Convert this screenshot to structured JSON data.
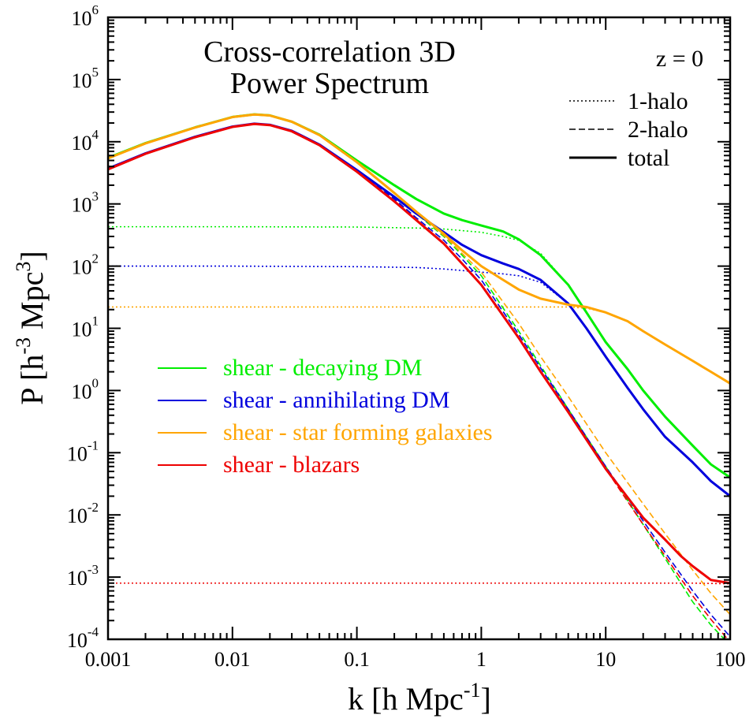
{
  "chart_data": {
    "type": "line",
    "title_lines": [
      "Cross-correlation 3D",
      "Power Spectrum"
    ],
    "redshift_label": "z = 0",
    "xlabel": {
      "base": "k [h Mpc",
      "sup": "-1",
      "tail": "]"
    },
    "ylabel": {
      "p1": "P [h",
      "sup1": "-3",
      "p2": " Mpc",
      "sup2": "3",
      "p3": "]"
    },
    "xscale": "log",
    "yscale": "log",
    "xlim": [
      0.001,
      100
    ],
    "ylim": [
      0.0001,
      1000000
    ],
    "x_ticks": [
      {
        "value": 0.001,
        "label": "0.001"
      },
      {
        "value": 0.01,
        "label": "0.01"
      },
      {
        "value": 0.1,
        "label": "0.1"
      },
      {
        "value": 1,
        "label": "1"
      },
      {
        "value": 10,
        "label": "10"
      },
      {
        "value": 100,
        "label": "100"
      }
    ],
    "y_ticks": [
      {
        "value": 0.0001,
        "base": "10",
        "exp": "-4"
      },
      {
        "value": 0.001,
        "base": "10",
        "exp": "-3"
      },
      {
        "value": 0.01,
        "base": "10",
        "exp": "-2"
      },
      {
        "value": 0.1,
        "base": "10",
        "exp": "-1"
      },
      {
        "value": 1,
        "base": "10",
        "exp": "0"
      },
      {
        "value": 10,
        "base": "10",
        "exp": "1"
      },
      {
        "value": 100,
        "base": "10",
        "exp": "2"
      },
      {
        "value": 1000,
        "base": "10",
        "exp": "3"
      },
      {
        "value": 10000,
        "base": "10",
        "exp": "4"
      },
      {
        "value": 100000,
        "base": "10",
        "exp": "5"
      },
      {
        "value": 1000000,
        "base": "10",
        "exp": "6"
      }
    ],
    "line_style_legend": [
      {
        "style": "dotted",
        "label": "1-halo"
      },
      {
        "style": "dashed",
        "label": "2-halo"
      },
      {
        "style": "solid",
        "label": "total"
      }
    ],
    "series": [
      {
        "name": "shear - decaying DM",
        "color": "#00ee00",
        "total": [
          [
            0.001,
            5500
          ],
          [
            0.002,
            9500
          ],
          [
            0.005,
            17000
          ],
          [
            0.01,
            25000
          ],
          [
            0.015,
            27500
          ],
          [
            0.02,
            26500
          ],
          [
            0.03,
            21000
          ],
          [
            0.05,
            13000
          ],
          [
            0.1,
            5000
          ],
          [
            0.2,
            2000
          ],
          [
            0.3,
            1200
          ],
          [
            0.5,
            700
          ],
          [
            0.7,
            550
          ],
          [
            1,
            450
          ],
          [
            1.5,
            360
          ],
          [
            2,
            270
          ],
          [
            3,
            150
          ],
          [
            5,
            50
          ],
          [
            7,
            18
          ],
          [
            10,
            6
          ],
          [
            15,
            2.2
          ],
          [
            20,
            1
          ],
          [
            30,
            0.38
          ],
          [
            50,
            0.13
          ],
          [
            70,
            0.065
          ],
          [
            100,
            0.04
          ]
        ],
        "one_halo": [
          [
            0.001,
            430
          ],
          [
            0.01,
            430
          ],
          [
            0.1,
            425
          ],
          [
            0.3,
            410
          ],
          [
            0.5,
            395
          ],
          [
            1,
            350
          ],
          [
            1.5,
            300
          ],
          [
            2,
            260
          ],
          [
            3,
            160
          ],
          [
            5,
            50
          ],
          [
            7,
            18
          ],
          [
            10,
            6
          ],
          [
            15,
            2.2
          ],
          [
            20,
            1
          ],
          [
            30,
            0.38
          ],
          [
            50,
            0.13
          ],
          [
            70,
            0.065
          ],
          [
            100,
            0.04
          ]
        ],
        "two_halo": [
          [
            0.001,
            5300
          ],
          [
            0.002,
            9300
          ],
          [
            0.005,
            16800
          ],
          [
            0.01,
            24800
          ],
          [
            0.015,
            27300
          ],
          [
            0.02,
            26300
          ],
          [
            0.03,
            20800
          ],
          [
            0.05,
            12600
          ],
          [
            0.1,
            4600
          ],
          [
            0.2,
            1500
          ],
          [
            0.3,
            700
          ],
          [
            0.5,
            300
          ],
          [
            0.7,
            150
          ],
          [
            1,
            70
          ],
          [
            2,
            9
          ],
          [
            3,
            2.5
          ],
          [
            5,
            0.5
          ],
          [
            10,
            0.06
          ],
          [
            20,
            0.007
          ],
          [
            30,
            0.002
          ],
          [
            50,
            0.0004
          ],
          [
            70,
            0.00017
          ],
          [
            100,
            8e-05
          ]
        ]
      },
      {
        "name": "shear - annihilating DM",
        "color": "#0000dd",
        "total": [
          [
            0.001,
            3700
          ],
          [
            0.002,
            6500
          ],
          [
            0.005,
            12000
          ],
          [
            0.01,
            17500
          ],
          [
            0.015,
            19500
          ],
          [
            0.02,
            18700
          ],
          [
            0.03,
            15000
          ],
          [
            0.05,
            9000
          ],
          [
            0.1,
            3500
          ],
          [
            0.2,
            1300
          ],
          [
            0.3,
            700
          ],
          [
            0.5,
            350
          ],
          [
            0.7,
            220
          ],
          [
            1,
            150
          ],
          [
            1.5,
            110
          ],
          [
            2,
            90
          ],
          [
            3,
            60
          ],
          [
            5,
            25
          ],
          [
            7,
            10
          ],
          [
            10,
            3.5
          ],
          [
            15,
            1.1
          ],
          [
            20,
            0.5
          ],
          [
            30,
            0.18
          ],
          [
            50,
            0.07
          ],
          [
            70,
            0.035
          ],
          [
            100,
            0.02
          ]
        ],
        "one_halo": [
          [
            0.001,
            100
          ],
          [
            0.01,
            100
          ],
          [
            0.1,
            98
          ],
          [
            0.3,
            95
          ],
          [
            0.5,
            90
          ],
          [
            1,
            80
          ],
          [
            1.5,
            75
          ],
          [
            2,
            70
          ],
          [
            3,
            55
          ],
          [
            5,
            25
          ],
          [
            7,
            10
          ],
          [
            10,
            3.5
          ],
          [
            15,
            1.1
          ],
          [
            20,
            0.5
          ],
          [
            30,
            0.18
          ],
          [
            50,
            0.07
          ],
          [
            70,
            0.035
          ],
          [
            100,
            0.02
          ]
        ],
        "two_halo": [
          [
            0.001,
            3600
          ],
          [
            0.002,
            6400
          ],
          [
            0.005,
            11900
          ],
          [
            0.01,
            17400
          ],
          [
            0.015,
            19400
          ],
          [
            0.02,
            18600
          ],
          [
            0.03,
            14900
          ],
          [
            0.05,
            8900
          ],
          [
            0.1,
            3400
          ],
          [
            0.2,
            1200
          ],
          [
            0.3,
            600
          ],
          [
            0.5,
            260
          ],
          [
            0.7,
            130
          ],
          [
            1,
            60
          ],
          [
            2,
            8
          ],
          [
            3,
            2.3
          ],
          [
            5,
            0.5
          ],
          [
            10,
            0.06
          ],
          [
            20,
            0.008
          ],
          [
            30,
            0.0025
          ],
          [
            50,
            0.0006
          ],
          [
            70,
            0.00025
          ],
          [
            100,
            0.00011
          ]
        ]
      },
      {
        "name": "shear - star forming galaxies",
        "color": "#ffa500",
        "total": [
          [
            0.001,
            5400
          ],
          [
            0.002,
            9400
          ],
          [
            0.005,
            16900
          ],
          [
            0.01,
            24900
          ],
          [
            0.015,
            27400
          ],
          [
            0.02,
            26400
          ],
          [
            0.03,
            21000
          ],
          [
            0.05,
            12800
          ],
          [
            0.1,
            4700
          ],
          [
            0.2,
            1500
          ],
          [
            0.3,
            750
          ],
          [
            0.5,
            330
          ],
          [
            0.7,
            180
          ],
          [
            1,
            100
          ],
          [
            1.5,
            60
          ],
          [
            2,
            42
          ],
          [
            3,
            30
          ],
          [
            5,
            24
          ],
          [
            7,
            22
          ],
          [
            10,
            18
          ],
          [
            15,
            13
          ],
          [
            20,
            9
          ],
          [
            30,
            5.5
          ],
          [
            50,
            3
          ],
          [
            70,
            2
          ],
          [
            100,
            1.3
          ]
        ],
        "one_halo": [
          [
            0.001,
            22
          ],
          [
            0.01,
            22
          ],
          [
            0.1,
            22
          ],
          [
            0.5,
            22
          ],
          [
            1,
            22
          ],
          [
            2,
            22
          ],
          [
            3,
            22
          ],
          [
            5,
            22
          ],
          [
            7,
            21
          ],
          [
            10,
            18
          ],
          [
            15,
            13
          ],
          [
            20,
            9
          ],
          [
            30,
            5.5
          ],
          [
            50,
            3
          ],
          [
            70,
            2
          ],
          [
            100,
            1.3
          ]
        ],
        "two_halo": [
          [
            0.001,
            5380
          ],
          [
            0.002,
            9380
          ],
          [
            0.005,
            16880
          ],
          [
            0.01,
            24880
          ],
          [
            0.015,
            27380
          ],
          [
            0.02,
            26380
          ],
          [
            0.03,
            20980
          ],
          [
            0.05,
            12780
          ],
          [
            0.1,
            4680
          ],
          [
            0.2,
            1480
          ],
          [
            0.3,
            730
          ],
          [
            0.5,
            310
          ],
          [
            0.7,
            160
          ],
          [
            1,
            80
          ],
          [
            2,
            12
          ],
          [
            3,
            3.5
          ],
          [
            5,
            0.8
          ],
          [
            10,
            0.1
          ],
          [
            20,
            0.015
          ],
          [
            30,
            0.005
          ],
          [
            50,
            0.0013
          ],
          [
            70,
            0.00055
          ],
          [
            100,
            0.00025
          ]
        ]
      },
      {
        "name": "shear - blazars",
        "color": "#ee0000",
        "total": [
          [
            0.001,
            3600
          ],
          [
            0.002,
            6400
          ],
          [
            0.005,
            11800
          ],
          [
            0.01,
            17300
          ],
          [
            0.015,
            19300
          ],
          [
            0.02,
            18500
          ],
          [
            0.03,
            14700
          ],
          [
            0.05,
            8800
          ],
          [
            0.1,
            3300
          ],
          [
            0.2,
            1100
          ],
          [
            0.3,
            550
          ],
          [
            0.5,
            230
          ],
          [
            0.7,
            110
          ],
          [
            1,
            50
          ],
          [
            2,
            7
          ],
          [
            3,
            2
          ],
          [
            5,
            0.45
          ],
          [
            10,
            0.055
          ],
          [
            20,
            0.009
          ],
          [
            30,
            0.004
          ],
          [
            40,
            0.0022
          ],
          [
            50,
            0.0015
          ],
          [
            70,
            0.0009
          ],
          [
            100,
            0.0008
          ]
        ],
        "one_halo": [
          [
            0.001,
            0.0008
          ],
          [
            1,
            0.0008
          ],
          [
            10,
            0.0008
          ],
          [
            50,
            0.0008
          ],
          [
            100,
            0.00078
          ]
        ],
        "two_halo": [
          [
            0.001,
            3600
          ],
          [
            0.002,
            6400
          ],
          [
            0.005,
            11800
          ],
          [
            0.01,
            17300
          ],
          [
            0.015,
            19300
          ],
          [
            0.02,
            18500
          ],
          [
            0.03,
            14700
          ],
          [
            0.05,
            8800
          ],
          [
            0.1,
            3300
          ],
          [
            0.2,
            1100
          ],
          [
            0.3,
            550
          ],
          [
            0.5,
            230
          ],
          [
            0.7,
            110
          ],
          [
            1,
            50
          ],
          [
            2,
            7
          ],
          [
            3,
            2
          ],
          [
            5,
            0.45
          ],
          [
            10,
            0.055
          ],
          [
            20,
            0.007
          ],
          [
            30,
            0.0022
          ],
          [
            50,
            0.0005
          ],
          [
            70,
            0.00021
          ],
          [
            100,
            9e-05
          ]
        ]
      }
    ]
  }
}
